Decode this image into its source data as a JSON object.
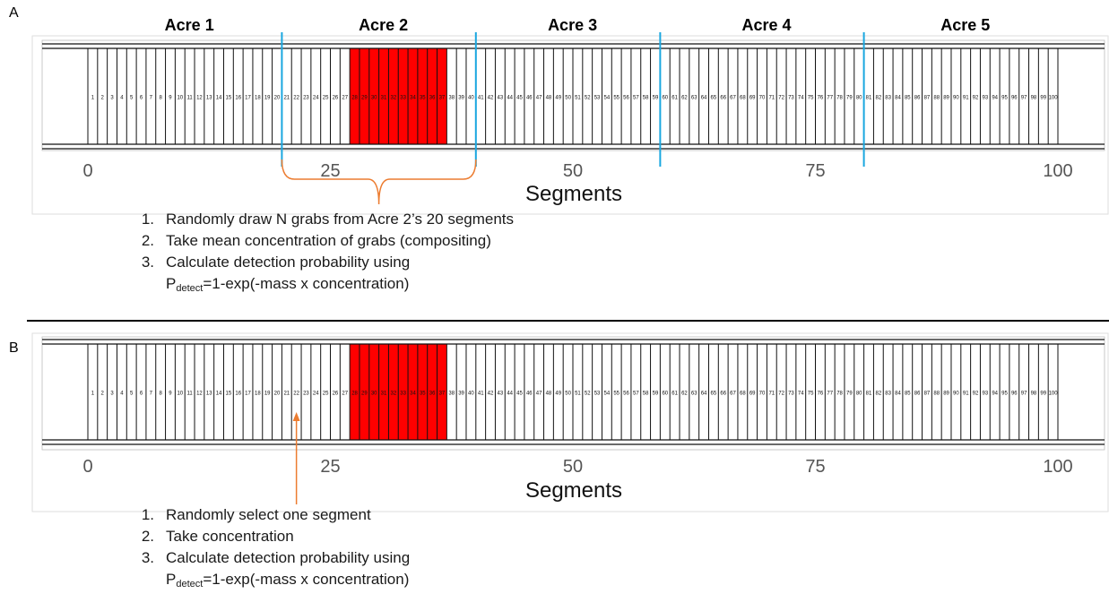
{
  "panels": [
    {
      "label": "A",
      "acres": [
        {
          "name": "Acre 1",
          "start": 0,
          "end": 20
        },
        {
          "name": "Acre 2",
          "start": 20,
          "end": 40
        },
        {
          "name": "Acre 3",
          "start": 40,
          "end": 59
        },
        {
          "name": "Acre 4",
          "start": 59,
          "end": 80
        },
        {
          "name": "Acre 5",
          "start": 80,
          "end": 100
        }
      ],
      "boundaries": [
        20,
        40,
        59,
        80
      ],
      "bracket": {
        "start": 20,
        "end": 40
      },
      "steps": [
        {
          "num": "1.",
          "text": "Randomly draw N grabs from Acre 2’s 20 segments"
        },
        {
          "num": "2.",
          "text": "Take mean concentration of grabs (compositing)"
        },
        {
          "num": "3.",
          "text": "Calculate detection probability using"
        }
      ],
      "formula": {
        "p": "P",
        "sub": "detect",
        "rest": "=1-exp(-mass x concentration)"
      }
    },
    {
      "label": "B",
      "arrow_segment": 22,
      "steps": [
        {
          "num": "1.",
          "text": "Randomly select one segment"
        },
        {
          "num": "2.",
          "text": "Take concentration"
        },
        {
          "num": "3.",
          "text": "Calculate detection probability using"
        }
      ],
      "formula": {
        "p": "P",
        "sub": "detect",
        "rest": "=1-exp(-mass x concentration)"
      }
    }
  ],
  "chart_data": [
    {
      "type": "bar",
      "segments": {
        "count": 100,
        "first": 1,
        "last": 100
      },
      "highlighted_segments": [
        28,
        29,
        30,
        31,
        32,
        33,
        34,
        35,
        36,
        37
      ],
      "x_ticks": [
        0,
        25,
        50,
        75,
        100
      ],
      "xlabel": "Segments",
      "xlim": [
        -5,
        103
      ],
      "colors": {
        "highlight": "#ff0000",
        "boundary": "#1aa7e0",
        "bracket": "#ec7c30"
      }
    },
    {
      "type": "bar",
      "segments": {
        "count": 100,
        "first": 1,
        "last": 100
      },
      "highlighted_segments": [
        28,
        29,
        30,
        31,
        32,
        33,
        34,
        35,
        36,
        37
      ],
      "x_ticks": [
        0,
        25,
        50,
        75,
        100
      ],
      "xlabel": "Segments",
      "xlim": [
        -5,
        103
      ],
      "colors": {
        "highlight": "#ff0000",
        "arrow": "#ec7c30"
      }
    }
  ]
}
